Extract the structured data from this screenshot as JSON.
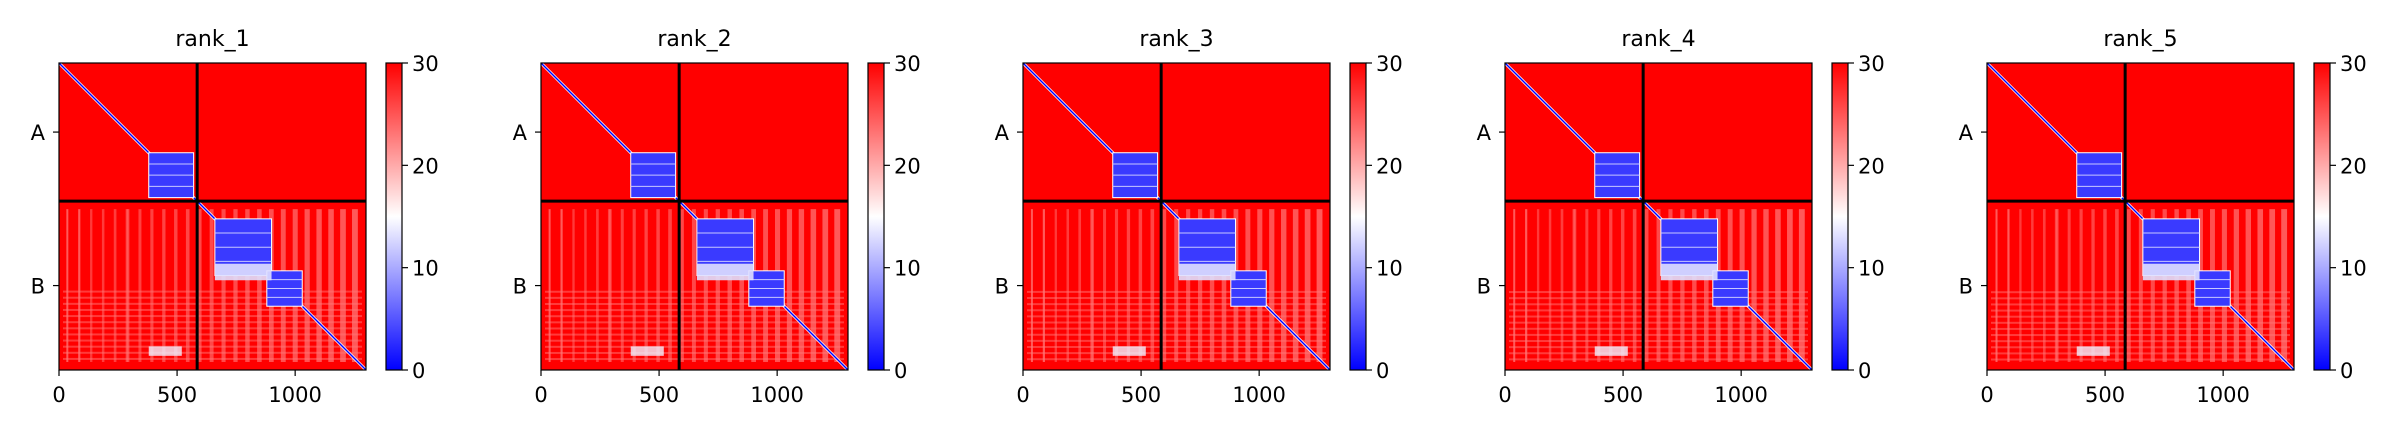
{
  "chart_data": {
    "type": "heatmap",
    "colormap": {
      "name": "bwr",
      "low": "#0000ff",
      "mid": "#ffffff",
      "high": "#ff0000"
    },
    "vmin": 0,
    "vmax": 30,
    "colorbar_ticks": [
      "0",
      "10",
      "20",
      "30"
    ],
    "x_ticks": [
      "0",
      "500",
      "1000"
    ],
    "y_labels": [
      "A",
      "B"
    ],
    "xlim": [
      0,
      1300
    ],
    "ylim": [
      1300,
      0
    ],
    "chain_boundary": 585,
    "panels": [
      {
        "title": "rank_1"
      },
      {
        "title": "rank_2"
      },
      {
        "title": "rank_3"
      },
      {
        "title": "rank_4"
      },
      {
        "title": "rank_5"
      }
    ]
  }
}
